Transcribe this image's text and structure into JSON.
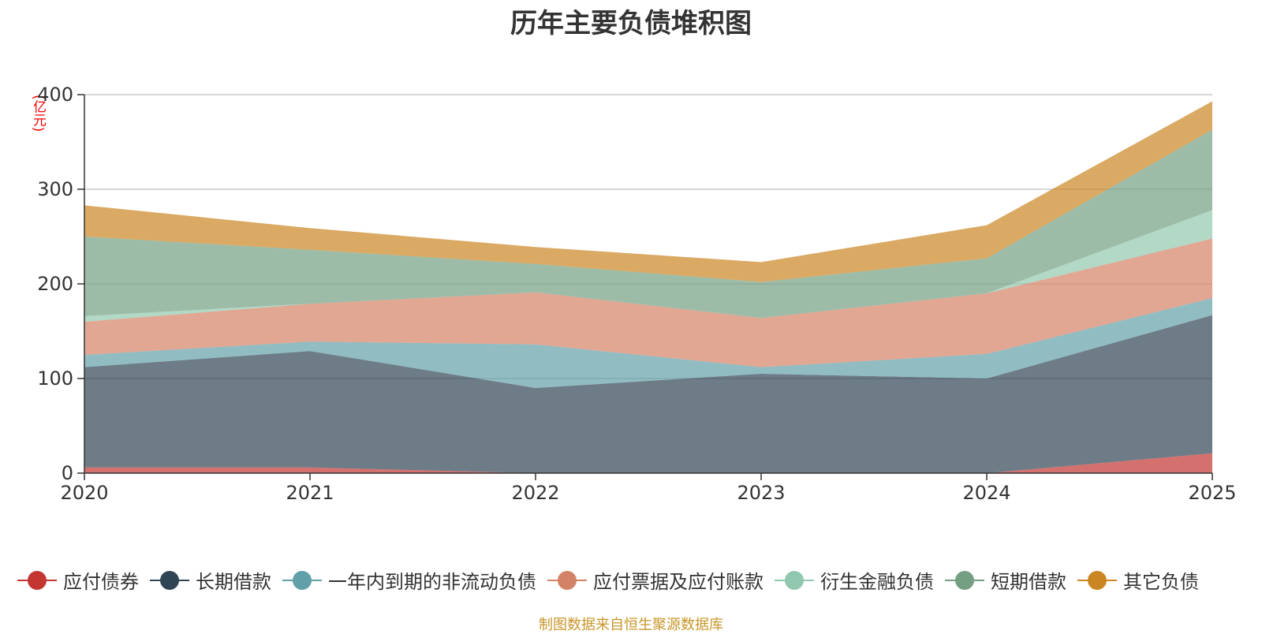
{
  "chart_data": {
    "type": "area",
    "stacked": true,
    "title": "历年主要负债堆积图",
    "unit_label": "(亿元)",
    "x": [
      "2020",
      "2021",
      "2022",
      "2023",
      "2024",
      "2025"
    ],
    "ylim": [
      0,
      400
    ],
    "yticks": [
      0,
      100,
      200,
      300,
      400
    ],
    "grid": true,
    "legend_position": "bottom",
    "series": [
      {
        "name": "应付债券",
        "color": "#c23531",
        "values": [
          6,
          6,
          0,
          0,
          0,
          21
        ]
      },
      {
        "name": "长期借款",
        "color": "#2f4554",
        "values": [
          106,
          123,
          90,
          105,
          100,
          146
        ]
      },
      {
        "name": "一年内到期的非流动负债",
        "color": "#61a0a8",
        "values": [
          13,
          10,
          46,
          7,
          26,
          18
        ]
      },
      {
        "name": "应付票据及应付账款",
        "color": "#d48265",
        "values": [
          35,
          40,
          55,
          52,
          64,
          63
        ]
      },
      {
        "name": "衍生金融负债",
        "color": "#91c7ae",
        "values": [
          6,
          0,
          0,
          0,
          0,
          30
        ]
      },
      {
        "name": "短期借款",
        "color": "#749f83",
        "values": [
          84,
          57,
          30,
          38,
          37,
          85
        ]
      },
      {
        "name": "其它负债",
        "color": "#ca8622",
        "values": [
          33,
          23,
          18,
          21,
          35,
          30
        ]
      }
    ]
  },
  "footer": {
    "source": "制图数据来自恒生聚源数据库"
  }
}
